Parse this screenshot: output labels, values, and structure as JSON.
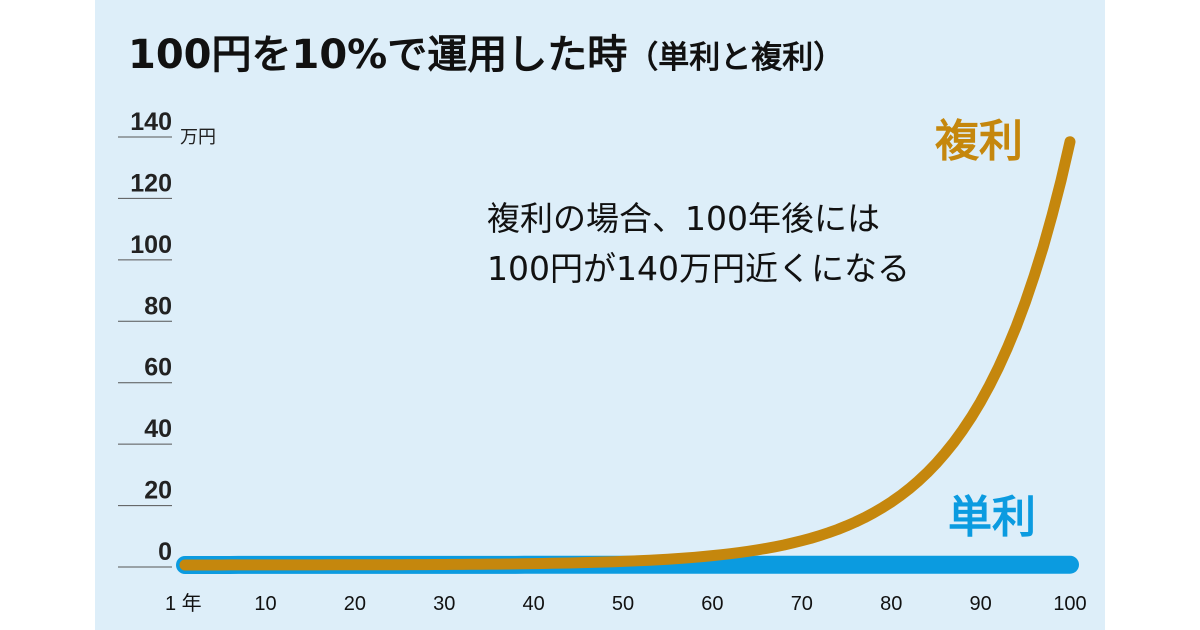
{
  "chart_data": {
    "type": "line",
    "title": "100円を10%で運用した時",
    "title_paren": "（単利と複利）",
    "y_unit": "万円",
    "x_first_suffix": "年",
    "ylim": [
      0,
      140
    ],
    "xlim": [
      1,
      100
    ],
    "yticks": [
      "0",
      "20",
      "40",
      "60",
      "80",
      "100",
      "120",
      "140"
    ],
    "xticks": [
      "1",
      "10",
      "20",
      "30",
      "40",
      "50",
      "60",
      "70",
      "80",
      "90",
      "100"
    ],
    "annotation_lines": [
      "複利の場合、100年後には",
      "100円が140万円近くになる"
    ],
    "series": [
      {
        "name": "単利",
        "color": "#0b9be0",
        "formula": "simple",
        "principal_yen": 100,
        "rate": 0.1
      },
      {
        "name": "複利",
        "color": "#c5870d",
        "formula": "compound",
        "principal_yen": 100,
        "rate": 0.1
      }
    ]
  }
}
